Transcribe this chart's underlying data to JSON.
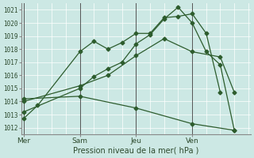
{
  "xlabel": "Pression niveau de la mer( hPa )",
  "bg_color": "#cce8e4",
  "grid_color": "#ffffff",
  "line_color": "#2d5c2d",
  "ylim": [
    1011.5,
    1021.5
  ],
  "yticks": [
    1012,
    1013,
    1014,
    1015,
    1016,
    1017,
    1018,
    1019,
    1020,
    1021
  ],
  "xtick_labels": [
    "Mer",
    "Sam",
    "Jeu",
    "Ven"
  ],
  "xtick_positions": [
    0,
    24,
    48,
    72
  ],
  "total_hours": 96,
  "xlim": [
    -1,
    97
  ],
  "series": [
    {
      "x": [
        0,
        6,
        24,
        30,
        36,
        42,
        48,
        54,
        60,
        66,
        72,
        78,
        84
      ],
      "y": [
        1012.7,
        1013.7,
        1017.8,
        1018.6,
        1018.0,
        1018.5,
        1019.2,
        1019.2,
        1020.4,
        1020.5,
        1020.7,
        1019.2,
        1014.7
      ]
    },
    {
      "x": [
        0,
        24,
        30,
        36,
        42,
        48,
        54,
        60,
        66,
        72,
        78,
        84,
        90
      ],
      "y": [
        1013.2,
        1015.0,
        1015.9,
        1016.5,
        1017.0,
        1018.4,
        1019.1,
        1020.3,
        1021.2,
        1020.0,
        1017.8,
        1016.8,
        1011.8
      ]
    },
    {
      "x": [
        0,
        24,
        36,
        48,
        60,
        72,
        84,
        90
      ],
      "y": [
        1014.0,
        1015.2,
        1016.0,
        1017.5,
        1018.8,
        1017.8,
        1017.4,
        1014.7
      ]
    },
    {
      "x": [
        0,
        24,
        48,
        72,
        90
      ],
      "y": [
        1014.2,
        1014.4,
        1013.5,
        1012.3,
        1011.8
      ]
    }
  ],
  "vlines_x": [
    0,
    24,
    48,
    72
  ],
  "vline_color": "#888888",
  "day_separator_color": "#555555"
}
